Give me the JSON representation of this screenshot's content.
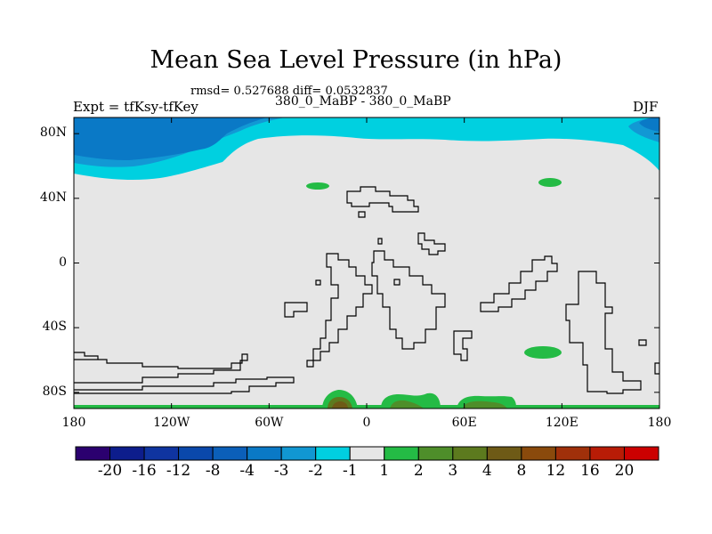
{
  "header": {
    "title": "Mean Sea Level Pressure (in hPa)",
    "stats": "rmsd= 0.527688 diff= 0.0532837",
    "left_label": "Expt = tfKsy-tfKey",
    "center_label": "380_0_MaBP - 380_0_MaBP",
    "right_label": "DJF"
  },
  "chart_data": {
    "type": "contour-map",
    "title": "Mean Sea Level Pressure (in hPa)",
    "projection": "cylindrical-equidistant",
    "x_range": [
      -180,
      180
    ],
    "y_range": [
      -90,
      90
    ],
    "x_ticks": [
      {
        "value": -180,
        "label": "180"
      },
      {
        "value": -120,
        "label": "120W"
      },
      {
        "value": -60,
        "label": "60W"
      },
      {
        "value": 0,
        "label": "0"
      },
      {
        "value": 60,
        "label": "60E"
      },
      {
        "value": 120,
        "label": "120E"
      },
      {
        "value": 180,
        "label": "180"
      }
    ],
    "y_ticks": [
      {
        "value": 80,
        "label": "80N"
      },
      {
        "value": 40,
        "label": "40N"
      },
      {
        "value": 0,
        "label": "0"
      },
      {
        "value": -40,
        "label": "40S"
      },
      {
        "value": -80,
        "label": "80S"
      }
    ],
    "colorbar": {
      "levels": [
        -20,
        -16,
        -12,
        -8,
        -4,
        -3,
        -2,
        -1,
        1,
        2,
        3,
        4,
        8,
        12,
        16,
        20
      ],
      "labels": [
        "-20",
        "-16",
        "-12",
        "-8",
        "-4",
        "-3",
        "-2",
        "-1",
        "1",
        "2",
        "3",
        "4",
        "8",
        "12",
        "16",
        "20"
      ],
      "colors": [
        "#2b006f",
        "#0d1d8c",
        "#0f34a0",
        "#0a48ab",
        "#0b5fb9",
        "#0a79c6",
        "#1197d2",
        "#00cfe0",
        "#e6e6e6",
        "#24bb45",
        "#4e8e2a",
        "#5c7a1e",
        "#6e5a16",
        "#8a4a0c",
        "#a0300a",
        "#b81c06",
        "#cc0000"
      ]
    },
    "regions": [
      {
        "name": "northern-low-band",
        "level_range": "-2 to -1",
        "location": "north of ~60N, all longitudes"
      },
      {
        "name": "arctic-low-core",
        "level_range": "-3 to -2",
        "location": "north of ~70N, 180W-100W and 165E-180E"
      },
      {
        "name": "mid-latitude-highs",
        "level_range": "1 to 2",
        "location": "45N 25W, 50N 110E, 50S 110E"
      },
      {
        "name": "antarctic-highs",
        "level_range": "2 to 16",
        "location": "near 85-90S, 30W-60E"
      }
    ]
  }
}
